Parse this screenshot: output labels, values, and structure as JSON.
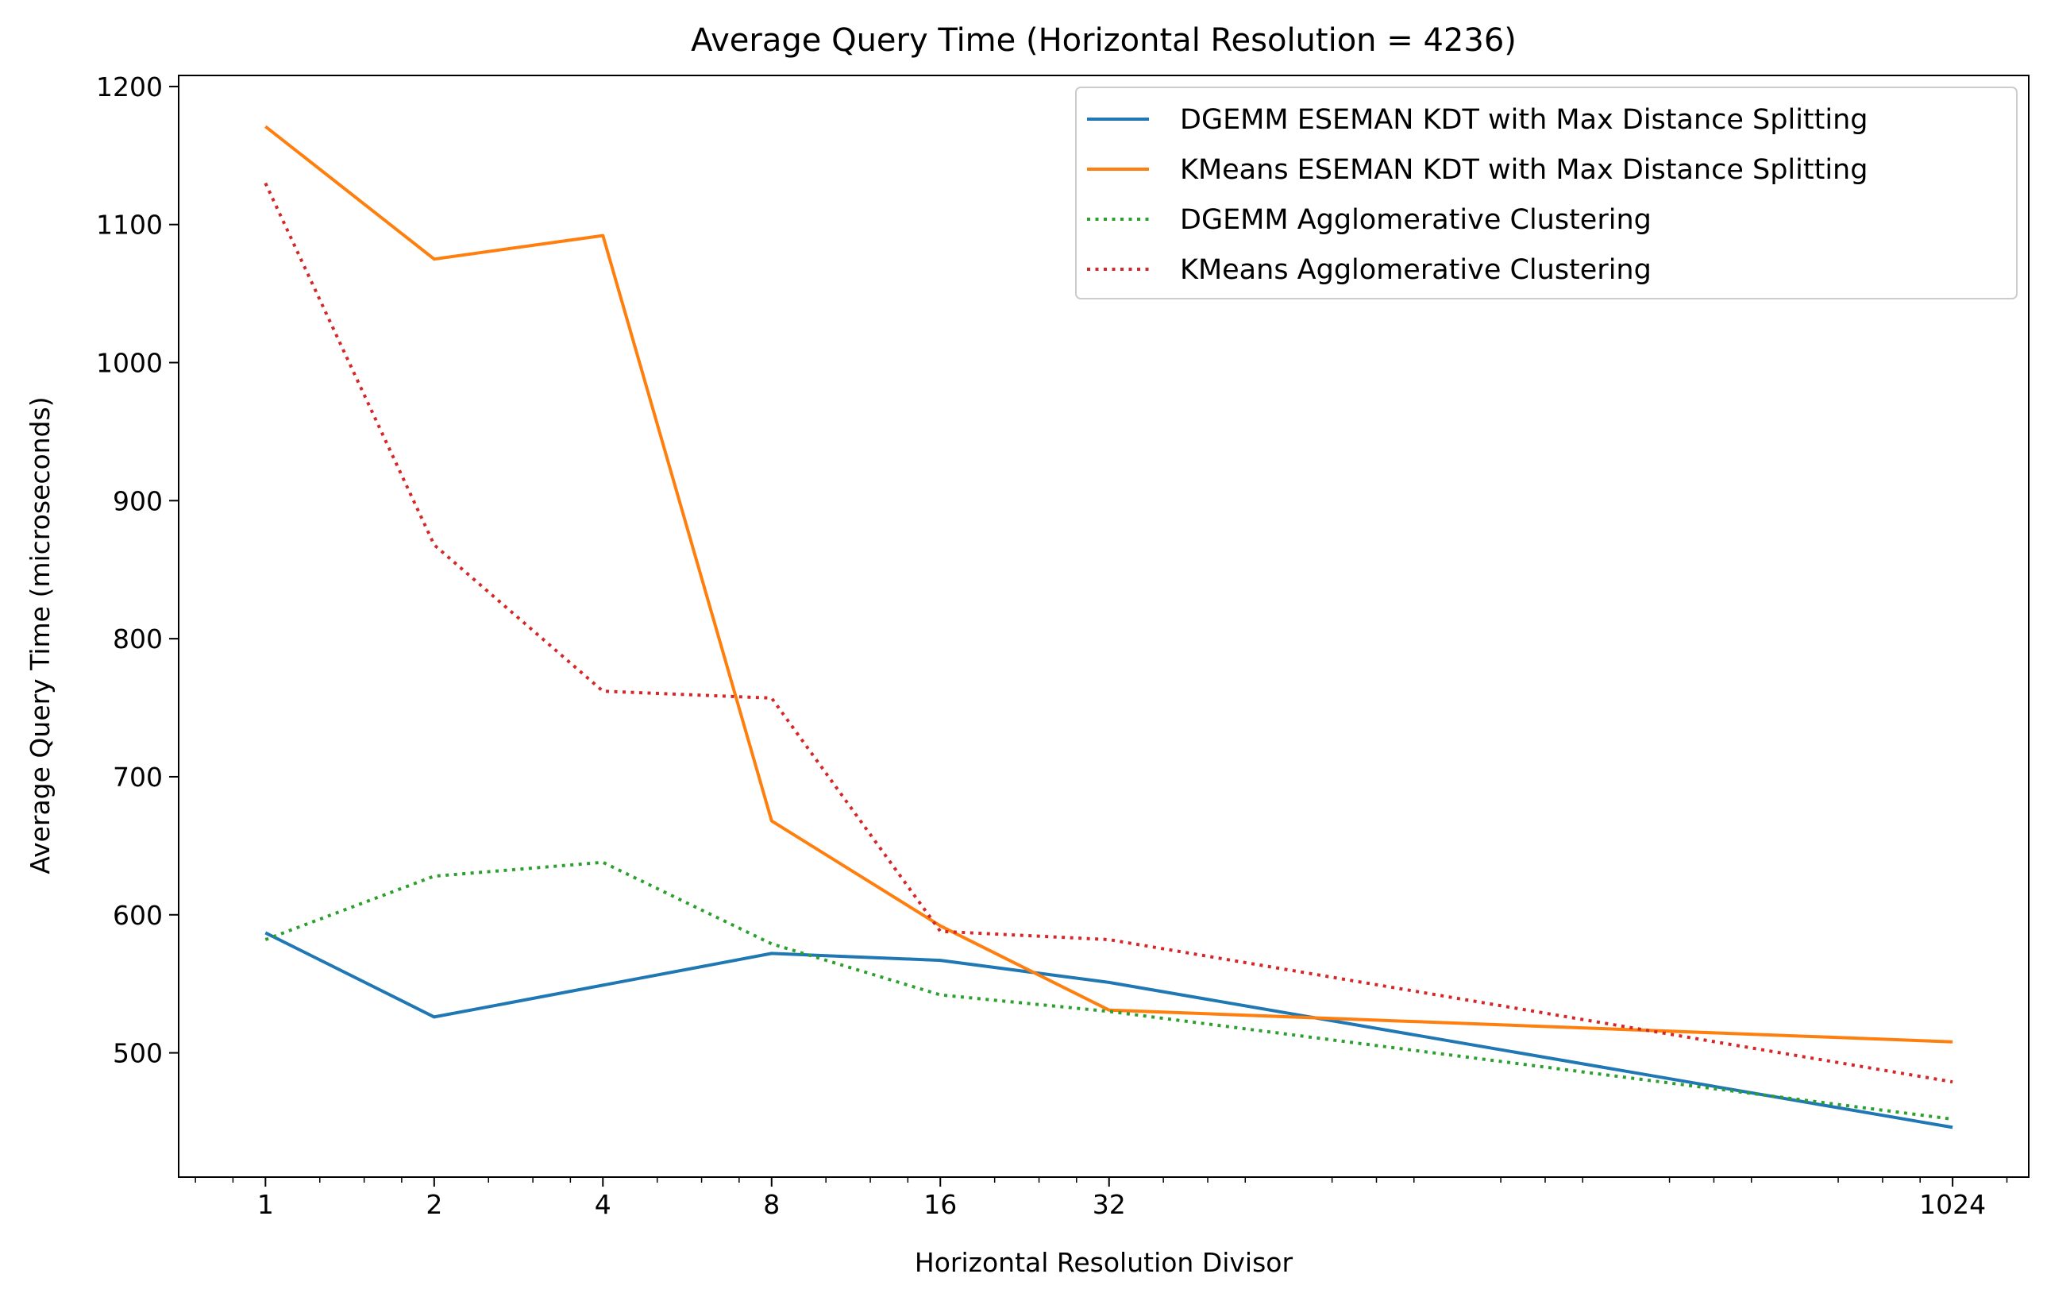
{
  "chart_data": {
    "type": "line",
    "title": "Average Query Time (Horizontal Resolution = 4236)",
    "xlabel": "Horizontal Resolution Divisor",
    "ylabel": "Average Query Time (microseconds)",
    "x_scale": "log2",
    "x": [
      1,
      2,
      4,
      8,
      16,
      32,
      1024
    ],
    "x_tick_labels": [
      "1",
      "2",
      "4",
      "8",
      "16",
      "32",
      "1024"
    ],
    "xlim": [
      0.7,
      1400
    ],
    "y_ticks": [
      500,
      600,
      700,
      800,
      900,
      1000,
      1100,
      1200
    ],
    "ylim": [
      410,
      1208
    ],
    "grid": false,
    "legend_position": "top-right",
    "series": [
      {
        "name": "DGEMM ESEMAN KDT with Max Distance Splitting",
        "color": "#1f77b4",
        "style": "solid",
        "values": [
          587,
          526,
          549,
          572,
          567,
          551,
          446
        ]
      },
      {
        "name": "KMeans ESEMAN KDT with Max Distance Splitting",
        "color": "#ff7f0e",
        "style": "solid",
        "values": [
          1171,
          1075,
          1092,
          668,
          592,
          531,
          508
        ]
      },
      {
        "name": "DGEMM Agglomerative Clustering",
        "color": "#2ca02c",
        "style": "dotted",
        "values": [
          582,
          628,
          638,
          579,
          542,
          530,
          452
        ]
      },
      {
        "name": "KMeans Agglomerative Clustering",
        "color": "#d62728",
        "style": "dotted",
        "values": [
          1130,
          868,
          762,
          757,
          588,
          582,
          479
        ]
      }
    ]
  }
}
